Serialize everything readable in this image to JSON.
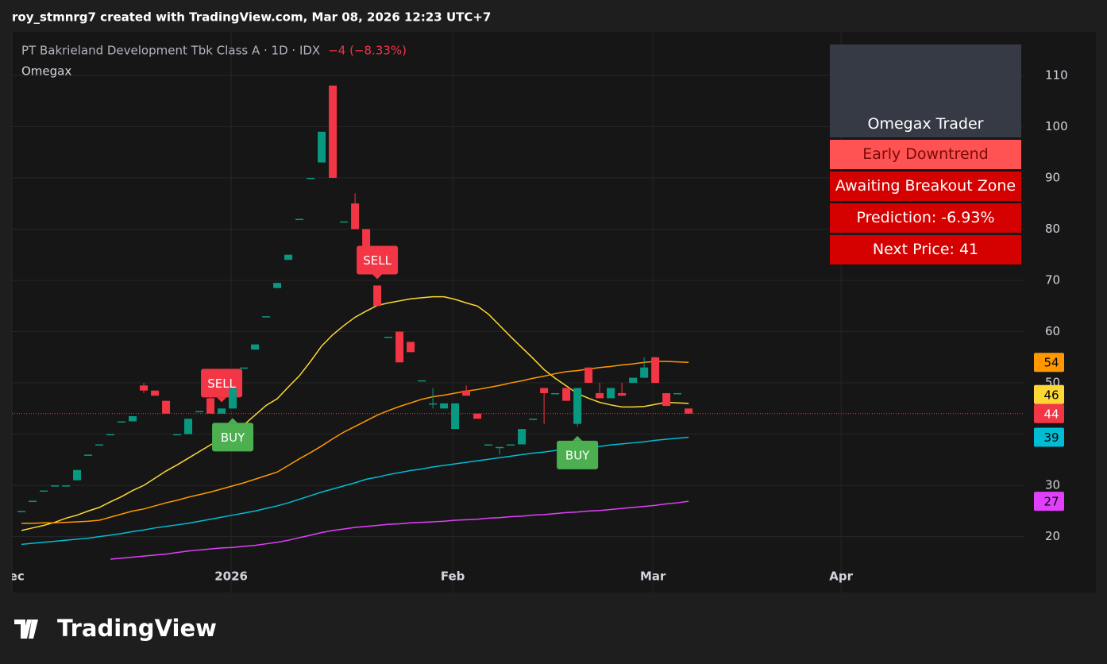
{
  "header": "roy_stmnrg7 created with TradingView.com, Mar 08, 2026 12:23 UTC+7",
  "logo": "TradingView",
  "info": {
    "title": "Omegax Trader",
    "rows": [
      "Early Downtrend",
      "Awaiting Breakout Zone",
      "Prediction: -6.93%",
      "Next Price: 41"
    ]
  },
  "chart_data": {
    "type": "candlestick",
    "title": "PT Bakrieland Development Tbk Class A · 1D · IDX",
    "change_label": "−4 (−8.33%)",
    "indicator": "Omegax",
    "up_color": "#089981",
    "down_color": "#f23645",
    "open": [
      25,
      27,
      29,
      30,
      30,
      31,
      36,
      38,
      40,
      42.5,
      42.5,
      49.5,
      48.5,
      46.5,
      40,
      40,
      44.5,
      47,
      44,
      45,
      53,
      56.5,
      63,
      68.5,
      74,
      82,
      90,
      93,
      108,
      81.5,
      85,
      80,
      69,
      59,
      60,
      58,
      50.5,
      46,
      45,
      41,
      48.5,
      44,
      38,
      37.5,
      38,
      38,
      43,
      49,
      48,
      49,
      42,
      53,
      48,
      47,
      48,
      50,
      51,
      55,
      48,
      48,
      45
    ],
    "high": [
      25,
      27,
      29,
      30,
      30,
      33,
      36,
      38,
      40,
      42.5,
      43.5,
      50,
      48.5,
      46.5,
      40,
      43,
      44.5,
      48,
      45,
      49,
      53,
      57.5,
      63,
      69.5,
      75,
      82,
      90,
      99,
      108,
      81.5,
      87,
      80,
      69,
      59,
      60,
      58,
      50.5,
      49,
      46,
      46,
      49.5,
      44,
      38,
      37.5,
      38,
      41,
      43,
      49,
      48,
      49,
      49,
      53,
      50,
      49,
      50,
      51,
      55,
      55,
      48,
      48,
      45
    ],
    "low": [
      25,
      27,
      29,
      30,
      30,
      31,
      36,
      38,
      40,
      42.5,
      42.5,
      48,
      47.5,
      44,
      40,
      40,
      44.5,
      44,
      44,
      45,
      53,
      56.5,
      63,
      68.5,
      74,
      82,
      90,
      93,
      90,
      81.5,
      80,
      72,
      65,
      59,
      54,
      56,
      50.5,
      45,
      45,
      41,
      47.5,
      43,
      38,
      36,
      38,
      38,
      43,
      42,
      48,
      46.5,
      41.5,
      50,
      47,
      47,
      47.5,
      50,
      51,
      50,
      45.5,
      48,
      44
    ],
    "close": [
      25,
      27,
      29,
      30,
      30,
      33,
      36,
      38,
      40,
      42.5,
      43.5,
      48.5,
      47.5,
      44,
      40,
      43,
      44.5,
      44,
      45,
      49,
      53,
      57.5,
      63,
      69.5,
      75,
      82,
      90,
      99,
      90,
      81.5,
      80,
      72,
      65,
      59,
      54,
      56,
      50.5,
      46,
      46,
      46,
      47.5,
      43,
      38,
      37.5,
      38,
      41,
      43,
      48,
      48,
      46.5,
      49,
      50,
      47,
      49,
      47.5,
      51,
      53,
      50,
      45.5,
      48,
      44
    ],
    "close_label": "44",
    "signals": [
      null,
      null,
      null,
      null,
      null,
      null,
      null,
      null,
      null,
      null,
      null,
      null,
      null,
      null,
      null,
      null,
      null,
      null,
      "SELL",
      "BUY",
      null,
      null,
      null,
      null,
      null,
      null,
      null,
      null,
      null,
      null,
      null,
      null,
      "SELL",
      null,
      null,
      null,
      null,
      null,
      null,
      null,
      null,
      null,
      null,
      null,
      null,
      null,
      null,
      null,
      null,
      null,
      "BUY",
      null,
      null,
      null,
      null,
      null,
      null,
      null,
      null,
      null,
      null
    ],
    "series": [
      {
        "color": "#fdd835",
        "last_label": "46",
        "values": [
          21.2,
          21.7,
          22.2,
          22.8,
          23.6,
          24.2,
          25,
          25.7,
          26.8,
          27.8,
          29,
          30,
          31.4,
          32.8,
          34,
          35.3,
          36.6,
          37.9,
          39.1,
          40.4,
          41.8,
          43.7,
          45.6,
          46.9,
          49.2,
          51.4,
          54.2,
          57.2,
          59.4,
          61.2,
          62.8,
          64,
          65.1,
          65.6,
          66,
          66.4,
          66.6,
          66.8,
          66.8,
          66.3,
          65.6,
          65,
          63.4,
          61.2,
          59,
          56.9,
          54.8,
          52.6,
          50.9,
          49.4,
          47.9,
          47,
          46.2,
          45.7,
          45.3,
          45.3,
          45.4,
          45.8,
          46.2,
          46.1,
          46
        ]
      },
      {
        "color": "#ff9800",
        "last_label": "54",
        "values": [
          22.6,
          22.6,
          22.7,
          22.7,
          22.8,
          22.9,
          23,
          23.2,
          23.8,
          24.4,
          25,
          25.4,
          26,
          26.6,
          27.1,
          27.7,
          28.2,
          28.7,
          29.3,
          29.9,
          30.5,
          31.2,
          31.9,
          32.6,
          33.9,
          35.2,
          36.4,
          37.7,
          39.1,
          40.4,
          41.5,
          42.6,
          43.7,
          44.6,
          45.4,
          46.1,
          46.8,
          47.3,
          47.6,
          48,
          48.4,
          48.7,
          49.1,
          49.5,
          50,
          50.4,
          50.9,
          51.3,
          51.8,
          52.2,
          52.4,
          52.7,
          53,
          53.2,
          53.5,
          53.7,
          54,
          54.2,
          54.2,
          54.1,
          54
        ]
      },
      {
        "color": "#00bcd4",
        "last_label": "39",
        "values": [
          18.5,
          18.7,
          18.9,
          19.1,
          19.3,
          19.5,
          19.7,
          20,
          20.3,
          20.6,
          21,
          21.3,
          21.7,
          22,
          22.3,
          22.6,
          23,
          23.4,
          23.8,
          24.2,
          24.6,
          25,
          25.5,
          26,
          26.6,
          27.3,
          28,
          28.7,
          29.3,
          29.9,
          30.5,
          31.2,
          31.6,
          32.1,
          32.5,
          32.9,
          33.2,
          33.6,
          33.9,
          34.2,
          34.5,
          34.8,
          35.1,
          35.4,
          35.7,
          36,
          36.3,
          36.5,
          36.8,
          37,
          37.2,
          37.4,
          37.6,
          37.9,
          38.1,
          38.3,
          38.5,
          38.8,
          39,
          39.2,
          39.4
        ]
      },
      {
        "color": "#e040fb",
        "last_label": "27",
        "values": [
          null,
          null,
          null,
          null,
          null,
          null,
          null,
          null,
          15.6,
          15.8,
          16,
          16.2,
          16.4,
          16.6,
          16.9,
          17.2,
          17.4,
          17.6,
          17.8,
          17.9,
          18.1,
          18.3,
          18.6,
          18.9,
          19.3,
          19.8,
          20.3,
          20.8,
          21.2,
          21.5,
          21.8,
          22,
          22.2,
          22.4,
          22.5,
          22.7,
          22.8,
          22.9,
          23,
          23.2,
          23.3,
          23.4,
          23.6,
          23.7,
          23.9,
          24,
          24.2,
          24.3,
          24.5,
          24.7,
          24.8,
          25,
          25.1,
          25.3,
          25.5,
          25.7,
          25.9,
          26.1,
          26.4,
          26.6,
          26.9
        ]
      }
    ],
    "xlim": [
      -0.86,
      90.2
    ],
    "xticks": [
      {
        "value": -0.86,
        "label": "Dec"
      },
      {
        "value": 18.86,
        "label": "2026"
      },
      {
        "value": 38.79,
        "label": "Feb"
      },
      {
        "value": 56.79,
        "label": "Mar"
      },
      {
        "value": 73.71,
        "label": "Apr"
      }
    ],
    "ylim": [
      9.1,
      118.5
    ],
    "yticks": [
      20,
      30,
      40,
      50,
      60,
      70,
      80,
      90,
      100,
      110
    ],
    "grid": true
  }
}
